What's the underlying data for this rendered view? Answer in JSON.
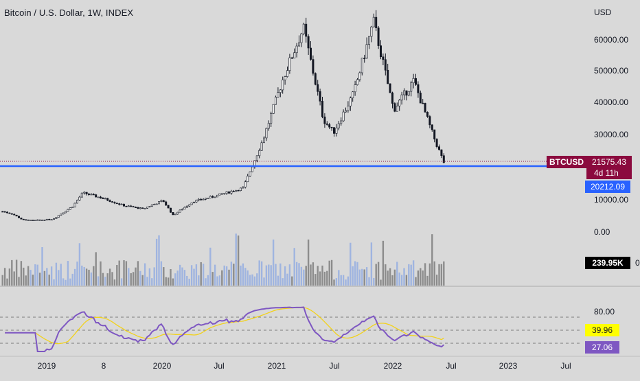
{
  "header": {
    "title": "Bitcoin / U.S. Dollar, 1W, INDEX"
  },
  "price_axis": {
    "unit": "USD",
    "ticks": [
      {
        "label": "60000.00",
        "value": 60000
      },
      {
        "label": "50000.00",
        "value": 50000
      },
      {
        "label": "40000.00",
        "value": 40000
      },
      {
        "label": "30000.00",
        "value": 30000
      },
      {
        "label": "10000.00",
        "value": 10000
      },
      {
        "label": "0.00",
        "value": 0
      }
    ]
  },
  "badges": {
    "symbol": "BTCUSD",
    "last_price": "21575.43",
    "countdown": "4d 11h",
    "level": "20212.09",
    "volume": "239.95K",
    "rsi_ma": "39.96",
    "rsi": "27.06"
  },
  "rsi_axis": {
    "label": "80.00",
    "value": 80
  },
  "time_axis": [
    "2019",
    "8",
    "2020",
    "Jul",
    "2021",
    "Jul",
    "2022",
    "Jul",
    "2023",
    "Jul"
  ],
  "colors": {
    "background": "#d9d9d9",
    "candle": "#131722",
    "level_line": "#2962ff",
    "price_line": "#8b0a3e",
    "symbol_badge": "#8b0a3e",
    "level_badge": "#2962ff",
    "volume_badge": "#000000",
    "volume_up": "#9fb4e0",
    "volume_down": "#8c8c8c",
    "rsi_line": "#7e57c2",
    "rsi_ma_line": "#f2d21b",
    "rsi_ma_badge": "#ffff00",
    "rsi_badge": "#7e57c2"
  },
  "chart_data": {
    "type": "candlestick",
    "title": "Bitcoin / U.S. Dollar, 1W, INDEX",
    "interval": "1W",
    "unit": "USD",
    "price_range": [
      0,
      70000
    ],
    "close_path": [
      {
        "week": "2018-10",
        "close": 6400
      },
      {
        "week": "2018-11",
        "close": 5600
      },
      {
        "week": "2018-12",
        "close": 3800
      },
      {
        "week": "2019-01",
        "close": 3600
      },
      {
        "week": "2019-03",
        "close": 4000
      },
      {
        "week": "2019-05",
        "close": 8000
      },
      {
        "week": "2019-06",
        "close": 12200
      },
      {
        "week": "2019-08",
        "close": 10500
      },
      {
        "week": "2019-10",
        "close": 8300
      },
      {
        "week": "2019-12",
        "close": 7200
      },
      {
        "week": "2020-02",
        "close": 9800
      },
      {
        "week": "2020-03",
        "close": 5200
      },
      {
        "week": "2020-05",
        "close": 9500
      },
      {
        "week": "2020-07",
        "close": 11000
      },
      {
        "week": "2020-10",
        "close": 13700
      },
      {
        "week": "2020-12",
        "close": 29000
      },
      {
        "week": "2021-02",
        "close": 48000
      },
      {
        "week": "2021-04",
        "close": 63500
      },
      {
        "week": "2021-06",
        "close": 35000
      },
      {
        "week": "2021-07",
        "close": 31000
      },
      {
        "week": "2021-09",
        "close": 43000
      },
      {
        "week": "2021-11",
        "close": 65500
      },
      {
        "week": "2022-01",
        "close": 38000
      },
      {
        "week": "2022-03",
        "close": 47000
      },
      {
        "week": "2022-05",
        "close": 29500
      },
      {
        "week": "2022-06",
        "close": 21575.43
      }
    ],
    "last_close": 21575.43,
    "horizontal_level": 20212.09,
    "volume_last": "239.95K",
    "rsi": {
      "last": 27.06,
      "ma_last": 39.96,
      "upper_band": 80
    }
  }
}
